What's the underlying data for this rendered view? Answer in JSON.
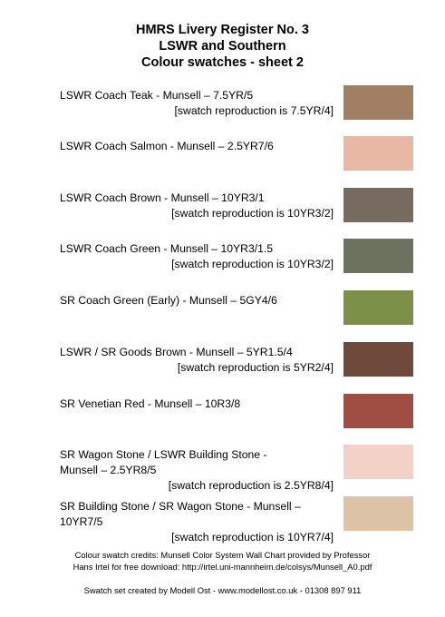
{
  "header": {
    "line1": "HMRS Livery Register No. 3",
    "line2": "LSWR and Southern",
    "line3": "Colour swatches - sheet 2"
  },
  "swatches": [
    {
      "line1": "LSWR Coach Teak -  Munsell – 7.5YR/5",
      "line2": "",
      "repro": "[swatch reproduction is 7.5YR/4]",
      "color": "#a17f64"
    },
    {
      "line1": "LSWR Coach Salmon -  Munsell – 2.5YR7/6",
      "line2": "",
      "repro": "",
      "color": "#e9b8a5"
    },
    {
      "line1": "LSWR Coach Brown  -  Munsell – 10YR3/1",
      "line2": "",
      "repro": "[swatch reproduction is 10YR3/2]",
      "color": "#776a5e"
    },
    {
      "line1": "LSWR Coach Green  -  Munsell – 10YR3/1.5",
      "line2": "",
      "repro": "[swatch reproduction is 10YR3/2]",
      "color": "#6b735f"
    },
    {
      "line1": "SR Coach Green (Early) -  Munsell – 5GY4/6",
      "line2": "",
      "repro": "",
      "color": "#7d9048"
    },
    {
      "line1": "LSWR / SR Goods Brown -  Munsell – 5YR1.5/4",
      "line2": "",
      "repro": "[swatch reproduction is  5YR2/4]",
      "color": "#6f4a3c"
    },
    {
      "line1": "SR Venetian Red  -  Munsell – 10R3/8",
      "line2": "",
      "repro": "",
      "color": "#a04d43"
    },
    {
      "line1": "SR Wagon Stone / LSWR Building Stone  -",
      "line2": "Munsell – 2.5YR8/5",
      "repro": "[swatch reproduction is 2.5YR8/4]",
      "color": "#f3d1c6"
    },
    {
      "line1": "SR Building Stone / SR Wagon Stone  -  Munsell –",
      "line2": "10YR7/5",
      "repro": "[swatch reproduction is 10YR7/4]",
      "color": "#ddc3a6"
    }
  ],
  "credits": {
    "line1": "Colour swatch credits: Munsell Color System Wall Chart provided by Professor",
    "line2": "Hans Irtel for free download: http://irtel.uni-mannheim.de/colsys/Munsell_A0.pdf"
  },
  "footer": "Swatch set created by Modell Ost - www.modellost.co.uk - 01308 897 911"
}
